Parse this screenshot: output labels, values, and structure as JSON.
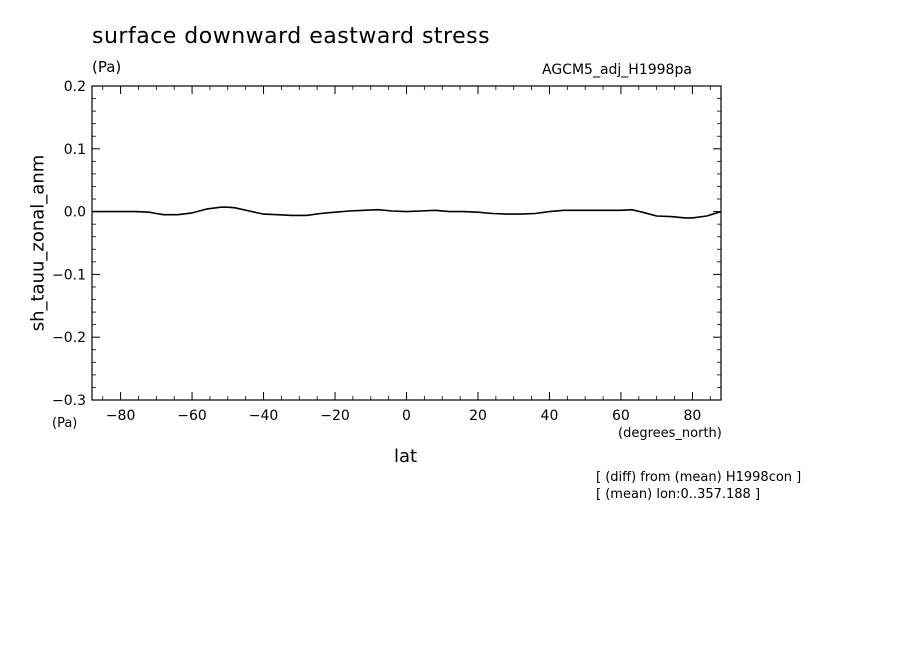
{
  "chart_data": {
    "type": "line",
    "title": "surface downward eastward stress",
    "title_units": "(Pa)",
    "dataset": "AGCM5_adj_H1998pa",
    "ylabel": "sh_tauu_zonal_anm",
    "yunits": "(Pa)",
    "xlabel": "lat",
    "xunits": "(degrees_north)",
    "notes": [
      "[ (diff) from (mean) H1998con ]",
      "[ (mean) lon:0..357.188 ]"
    ],
    "xlim": [
      -88,
      88
    ],
    "ylim": [
      -0.3,
      0.2
    ],
    "x_ticks": [
      -80,
      -60,
      -40,
      -20,
      0,
      20,
      40,
      60,
      80
    ],
    "x_tick_labels": [
      "−80",
      "−60",
      "−40",
      "−20",
      "0",
      "20",
      "40",
      "60",
      "80"
    ],
    "y_ticks": [
      0.2,
      0.1,
      0.0,
      -0.1,
      -0.2,
      -0.3
    ],
    "y_tick_labels": [
      "0.2",
      "0.1",
      "0.0",
      "−0.1",
      "−0.2",
      "−0.3"
    ],
    "grid": false,
    "series": [
      {
        "color": "#000000",
        "x": [
          -88,
          -84,
          -80,
          -76,
          -72,
          -70,
          -68,
          -64,
          -60,
          -56,
          -52,
          -50,
          -48,
          -44,
          -40,
          -36,
          -32,
          -28,
          -24,
          -20,
          -16,
          -12,
          -8,
          -4,
          0,
          4,
          8,
          12,
          16,
          20,
          24,
          28,
          32,
          36,
          40,
          44,
          48,
          52,
          56,
          60,
          63,
          66,
          70,
          74,
          78,
          80,
          84,
          88
        ],
        "y": [
          0.0,
          0.0,
          0.0,
          0.0,
          -0.001,
          -0.003,
          -0.005,
          -0.005,
          -0.002,
          0.004,
          0.007,
          0.007,
          0.006,
          0.001,
          -0.004,
          -0.005,
          -0.006,
          -0.006,
          -0.003,
          -0.001,
          0.001,
          0.002,
          0.003,
          0.001,
          0.0,
          0.001,
          0.002,
          0.0,
          0.0,
          -0.001,
          -0.003,
          -0.004,
          -0.004,
          -0.003,
          0.0,
          0.002,
          0.002,
          0.002,
          0.002,
          0.002,
          0.003,
          -0.001,
          -0.007,
          -0.008,
          -0.01,
          -0.01,
          -0.007,
          0.0
        ]
      }
    ]
  }
}
